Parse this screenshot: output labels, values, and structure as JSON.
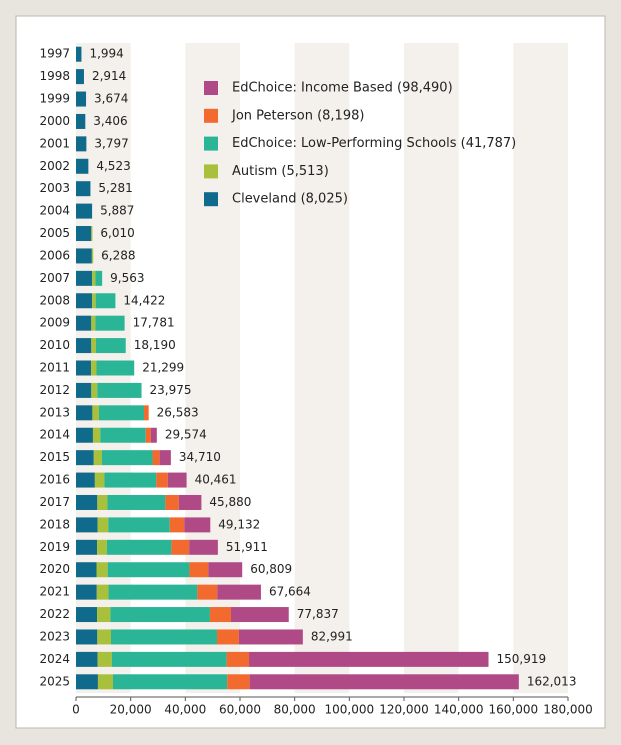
{
  "chart_data": {
    "type": "stacked-bar-horizontal",
    "categories": [
      "1997",
      "1998",
      "1999",
      "2000",
      "2001",
      "2002",
      "2003",
      "2004",
      "2005",
      "2006",
      "2007",
      "2008",
      "2009",
      "2010",
      "2011",
      "2012",
      "2013",
      "2014",
      "2015",
      "2016",
      "2017",
      "2018",
      "2019",
      "2020",
      "2021",
      "2022",
      "2023",
      "2024",
      "2025"
    ],
    "series": [
      {
        "name": "Cleveland  (8,025)",
        "color": "#0f6a8b",
        "values": [
          1994,
          2914,
          3674,
          3406,
          3797,
          4523,
          5281,
          5887,
          5600,
          5800,
          5900,
          5900,
          5600,
          5600,
          5500,
          5600,
          6000,
          6200,
          6500,
          6900,
          7800,
          7900,
          7700,
          7500,
          7600,
          7700,
          7800,
          7900,
          8025
        ]
      },
      {
        "name": "Autism  (5,513)",
        "color": "#a9c03c",
        "values": [
          0,
          0,
          0,
          0,
          0,
          0,
          0,
          0,
          410,
          488,
          1200,
          1300,
          1500,
          1700,
          2000,
          2200,
          2400,
          2700,
          3000,
          3500,
          3700,
          3900,
          3600,
          4100,
          4300,
          4900,
          5000,
          5200,
          5513
        ]
      },
      {
        "name": "EdChoice: Low-Performing Schools  (41,787)",
        "color": "#2bb597",
        "values": [
          0,
          0,
          0,
          0,
          0,
          0,
          0,
          0,
          0,
          0,
          2463,
          7222,
          10681,
          10890,
          13799,
          16175,
          16483,
          16600,
          18500,
          19000,
          21200,
          22500,
          23600,
          29900,
          32500,
          36400,
          38800,
          42000,
          41787
        ]
      },
      {
        "name": "Jon Peterson  (8,198)",
        "color": "#f26a2e",
        "values": [
          0,
          0,
          0,
          0,
          0,
          0,
          0,
          0,
          0,
          0,
          0,
          0,
          0,
          0,
          0,
          0,
          1700,
          1900,
          2600,
          4200,
          4900,
          5300,
          6500,
          6900,
          7300,
          7700,
          8000,
          8200,
          8198
        ]
      },
      {
        "name": "EdChoice: Income Based  (98,490)",
        "color": "#b04a87",
        "values": [
          0,
          0,
          0,
          0,
          0,
          0,
          0,
          0,
          0,
          0,
          0,
          0,
          0,
          0,
          0,
          0,
          0,
          2174,
          4110,
          6861,
          8280,
          9532,
          10511,
          12409,
          15964,
          21137,
          23391,
          87619,
          98490
        ]
      }
    ],
    "totals": [
      1994,
      2914,
      3674,
      3406,
      3797,
      4523,
      5281,
      5887,
      6010,
      6288,
      9563,
      14422,
      17781,
      18190,
      21299,
      23975,
      26583,
      29574,
      34710,
      40461,
      45880,
      49132,
      51911,
      60809,
      67664,
      77837,
      82991,
      150919,
      162013
    ],
    "total_labels": [
      "1,994",
      "2,914",
      "3,674",
      "3,406",
      "3,797",
      "4,523",
      "5,281",
      "5,887",
      "6,010",
      "6,288",
      "9,563",
      "14,422",
      "17,781",
      "18,190",
      "21,299",
      "23,975",
      "26,583",
      "29,574",
      "34,710",
      "40,461",
      "45,880",
      "49,132",
      "51,911",
      "60,809",
      "67,664",
      "77,837",
      "82,991",
      "150,919",
      "162,013"
    ],
    "xlim": [
      0,
      180000
    ],
    "xticks": [
      0,
      {
        "value": 20000,
        "label": "20,000"
      },
      {
        "value": 40000,
        "label": "40,000"
      },
      {
        "value": 60000,
        "label": "60,000"
      },
      {
        "value": 80000,
        "label": "80,000"
      },
      {
        "value": 100000,
        "label": "100,000"
      },
      {
        "value": 120000,
        "label": "120,000"
      },
      {
        "value": 140000,
        "label": "140,000"
      },
      {
        "value": 160000,
        "label": "160,000"
      },
      {
        "value": 180000,
        "label": "180,000"
      }
    ],
    "legend": "upper-center"
  }
}
